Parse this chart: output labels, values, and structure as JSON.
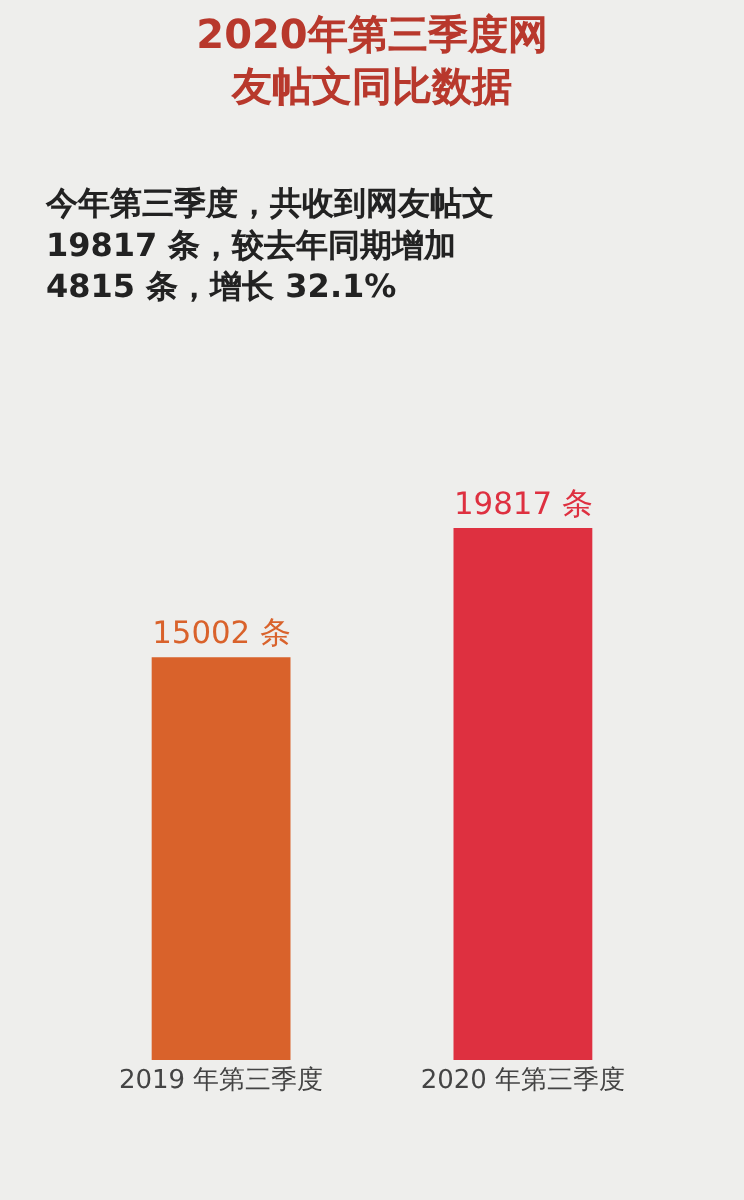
{
  "chart_data": {
    "type": "bar",
    "title": "2020年第三季度网友帖文同比数据",
    "subtitle": "今年第三季度，共收到网友帖文19817 条，较去年同期增加4815 条，增长 32.1%",
    "categories": [
      "2019 年第三季度",
      "2020 年第三季度"
    ],
    "values": [
      15002,
      19817
    ],
    "colors": [
      "#d9622b",
      "#de3040"
    ],
    "value_labels": [
      "15002 条",
      "19817 条"
    ],
    "relative": false
  }
}
